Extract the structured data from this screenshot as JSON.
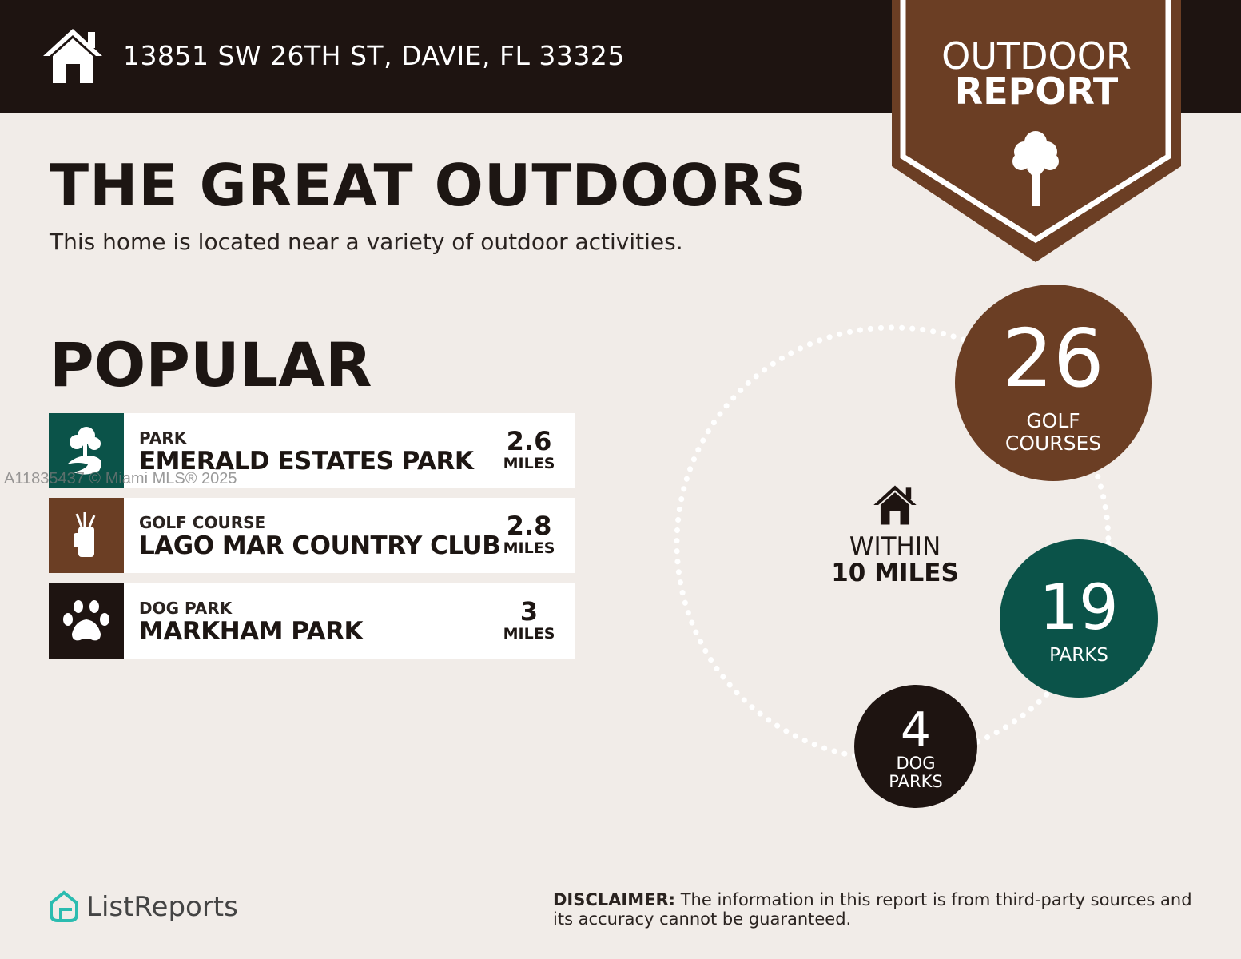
{
  "header": {
    "address": "13851 SW 26TH ST, DAVIE, FL 33325",
    "icon": "home-icon"
  },
  "badge": {
    "line1": "OUTDOOR",
    "line2": "REPORT",
    "icon": "tree-icon",
    "color": "#6b3e24"
  },
  "main": {
    "title": "THE GREAT OUTDOORS",
    "subtitle": "This home is located near a variety of outdoor activities.",
    "popular_heading": "POPULAR",
    "items": [
      {
        "category": "PARK",
        "name": "EMERALD ESTATES PARK",
        "distance": "2.6",
        "unit": "MILES",
        "icon": "park-trees-icon",
        "color": "#0b5349"
      },
      {
        "category": "GOLF COURSE",
        "name": "LAGO MAR COUNTRY CLUB",
        "distance": "2.8",
        "unit": "MILES",
        "icon": "golf-bag-icon",
        "color": "#6b3e24"
      },
      {
        "category": "DOG PARK",
        "name": "MARKHAM PARK",
        "distance": "3",
        "unit": "MILES",
        "icon": "paw-icon",
        "color": "#1e1411"
      }
    ]
  },
  "summary": {
    "within_label": "WITHIN",
    "radius_label": "10 MILES",
    "golf": {
      "count": "26",
      "line1": "GOLF",
      "line2": "COURSES",
      "color": "#6b3e24"
    },
    "parks": {
      "count": "19",
      "line1": "PARKS",
      "color": "#0b5349"
    },
    "dog_parks": {
      "count": "4",
      "line1": "DOG",
      "line2": "PARKS",
      "color": "#1e1411"
    }
  },
  "watermark": "A11835437 © Miami MLS® 2025",
  "footer": {
    "logo_text": "ListReports",
    "disclaimer_label": "DISCLAIMER:",
    "disclaimer_text": " The information in this report is from third-party sources and its accuracy cannot be guaranteed."
  }
}
